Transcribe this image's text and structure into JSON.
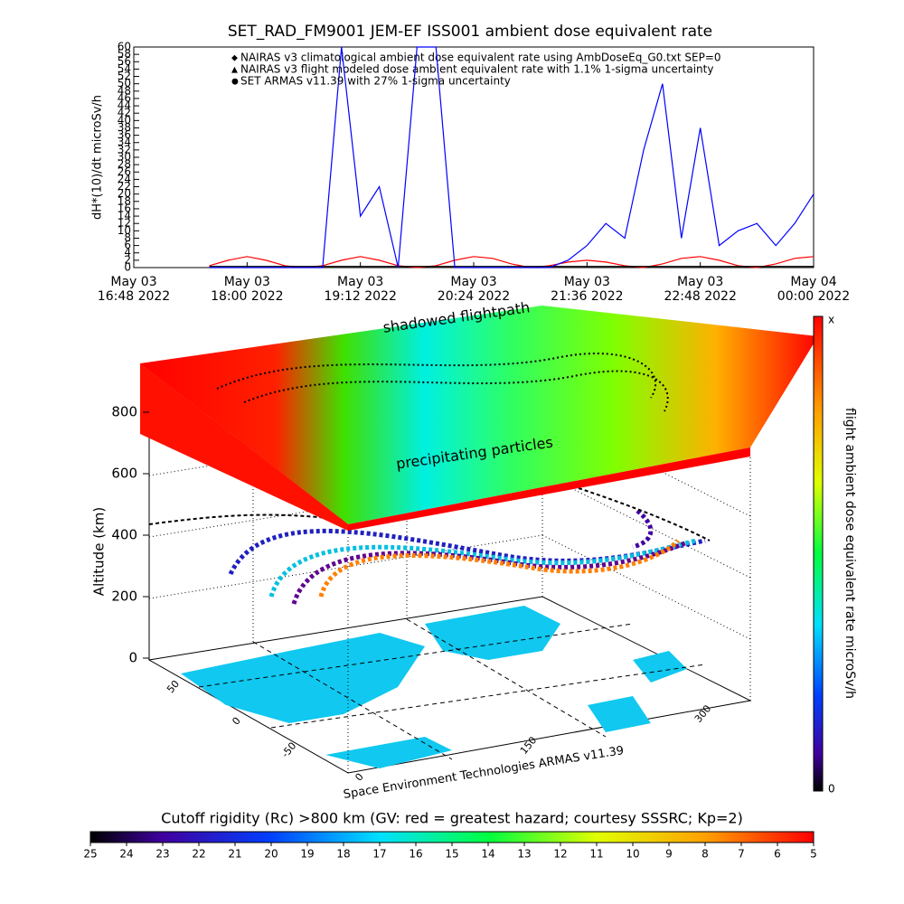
{
  "chart_data": {
    "type": "line",
    "title": "SET_RAD_FM9001  JEM-EF ISS001 ambient dose equivalent rate",
    "y_label": "dH*(10)/dt microSv/h",
    "x": [
      "2022-05-03T16:48",
      "2022-05-03T17:00",
      "2022-05-03T17:12",
      "2022-05-03T17:24",
      "2022-05-03T17:36",
      "2022-05-03T17:48",
      "2022-05-03T18:00",
      "2022-05-03T18:12",
      "2022-05-03T18:24",
      "2022-05-03T18:36",
      "2022-05-03T18:48",
      "2022-05-03T19:00",
      "2022-05-03T19:12",
      "2022-05-03T19:24",
      "2022-05-03T19:36",
      "2022-05-03T19:48",
      "2022-05-03T20:00",
      "2022-05-03T20:12",
      "2022-05-03T20:24",
      "2022-05-03T20:36",
      "2022-05-03T20:48",
      "2022-05-03T21:00",
      "2022-05-03T21:12",
      "2022-05-03T21:24",
      "2022-05-03T21:36",
      "2022-05-03T21:48",
      "2022-05-03T22:00",
      "2022-05-03T22:12",
      "2022-05-03T22:24",
      "2022-05-03T22:36",
      "2022-05-03T22:48",
      "2022-05-03T23:00",
      "2022-05-03T23:12",
      "2022-05-03T23:24",
      "2022-05-03T23:36",
      "2022-05-03T23:48",
      "2022-05-04T00:00"
    ],
    "series": [
      {
        "name": "NAIRAS v3 climatological ambient dose equivalent rate using AmbDoseEq_G0.txt SEP=0",
        "color": "#ff0000",
        "marker": "◆",
        "values": [
          null,
          null,
          null,
          null,
          0.5,
          2,
          3,
          2,
          0.5,
          0,
          0.5,
          2,
          3,
          2,
          0.5,
          0,
          0.5,
          2,
          3,
          2.5,
          1,
          0,
          0.5,
          1.5,
          2,
          1.5,
          0.5,
          0,
          1,
          2.5,
          3,
          2,
          0.5,
          0,
          1,
          2.5,
          3
        ]
      },
      {
        "name": "NAIRAS v3 flight modeled dose ambient equivalent rate with 1.1% 1-sigma uncertainty",
        "color": "#000000",
        "marker": "▲",
        "values": [
          null,
          null,
          null,
          null,
          0.3,
          0.3,
          0.3,
          0.3,
          0.3,
          0.3,
          0.3,
          0.3,
          0.3,
          0.3,
          0.3,
          0.3,
          0.3,
          0.3,
          0.3,
          0.3,
          0.3,
          0.3,
          0.3,
          0.3,
          0.3,
          0.3,
          0.3,
          0.3,
          0.3,
          0.3,
          0.3,
          0.3,
          0.3,
          0.3,
          0.3,
          0.3,
          0.3
        ]
      },
      {
        "name": "SET ARMAS v11.39 with 27% 1-sigma uncertainty",
        "color": "#0000ff",
        "marker": "●",
        "values": [
          null,
          null,
          null,
          null,
          0,
          0,
          0,
          0,
          0,
          0,
          0,
          60,
          14,
          22,
          0,
          60,
          60,
          0,
          0,
          0,
          0,
          0,
          0,
          2,
          6,
          12,
          8,
          32,
          50,
          8,
          38,
          6,
          10,
          12,
          6,
          12,
          20
        ]
      }
    ],
    "xlim": [
      "2022-05-03T16:48",
      "2022-05-04T00:00"
    ],
    "xticks": [
      {
        "value": "2022-05-03T16:48",
        "label": [
          "May 03",
          "16:48 2022"
        ]
      },
      {
        "value": "2022-05-03T18:00",
        "label": [
          "May 03",
          "18:00 2022"
        ]
      },
      {
        "value": "2022-05-03T19:12",
        "label": [
          "May 03",
          "19:12 2022"
        ]
      },
      {
        "value": "2022-05-03T20:24",
        "label": [
          "May 03",
          "20:24 2022"
        ]
      },
      {
        "value": "2022-05-03T21:36",
        "label": [
          "May 03",
          "21:36 2022"
        ]
      },
      {
        "value": "2022-05-03T22:48",
        "label": [
          "May 03",
          "22:48 2022"
        ]
      },
      {
        "value": "2022-05-04T00:00",
        "label": [
          "May 04",
          "00:00 2022"
        ]
      }
    ],
    "ylim": [
      0,
      60
    ],
    "yticks": [
      0,
      2,
      4,
      6,
      8,
      10,
      12,
      14,
      16,
      18,
      20,
      22,
      24,
      26,
      28,
      30,
      32,
      34,
      36,
      38,
      40,
      42,
      44,
      46,
      48,
      50,
      52,
      54,
      56,
      58,
      60
    ]
  },
  "globe_panel": {
    "slab_top_label": "shadowed flightpath",
    "slab_side_label": "precipitating particles",
    "z_label": "Altitude (km)",
    "zlim": [
      0,
      800
    ],
    "zticks": [
      0,
      200,
      400,
      600,
      800
    ],
    "lat_ticks": [
      50,
      0,
      -50
    ],
    "lon_ticks": [
      0,
      150,
      300
    ],
    "credit": "Space Environment Technologies ARMAS v11.39"
  },
  "dose_colorbar": {
    "label": "flight ambient dose equivalent rate microSv/h",
    "top": "x",
    "bottom": "0"
  },
  "rigidity_colorbar": {
    "title": "Cutoff rigidity (Rc) >800 km (GV: red = greatest hazard; courtesy SSSRC; Kp=2)",
    "lim": [
      25,
      5
    ],
    "ticks": [
      25,
      24,
      23,
      22,
      21,
      20,
      19,
      18,
      17,
      16,
      15,
      14,
      13,
      12,
      11,
      10,
      9,
      8,
      7,
      6,
      5
    ]
  }
}
